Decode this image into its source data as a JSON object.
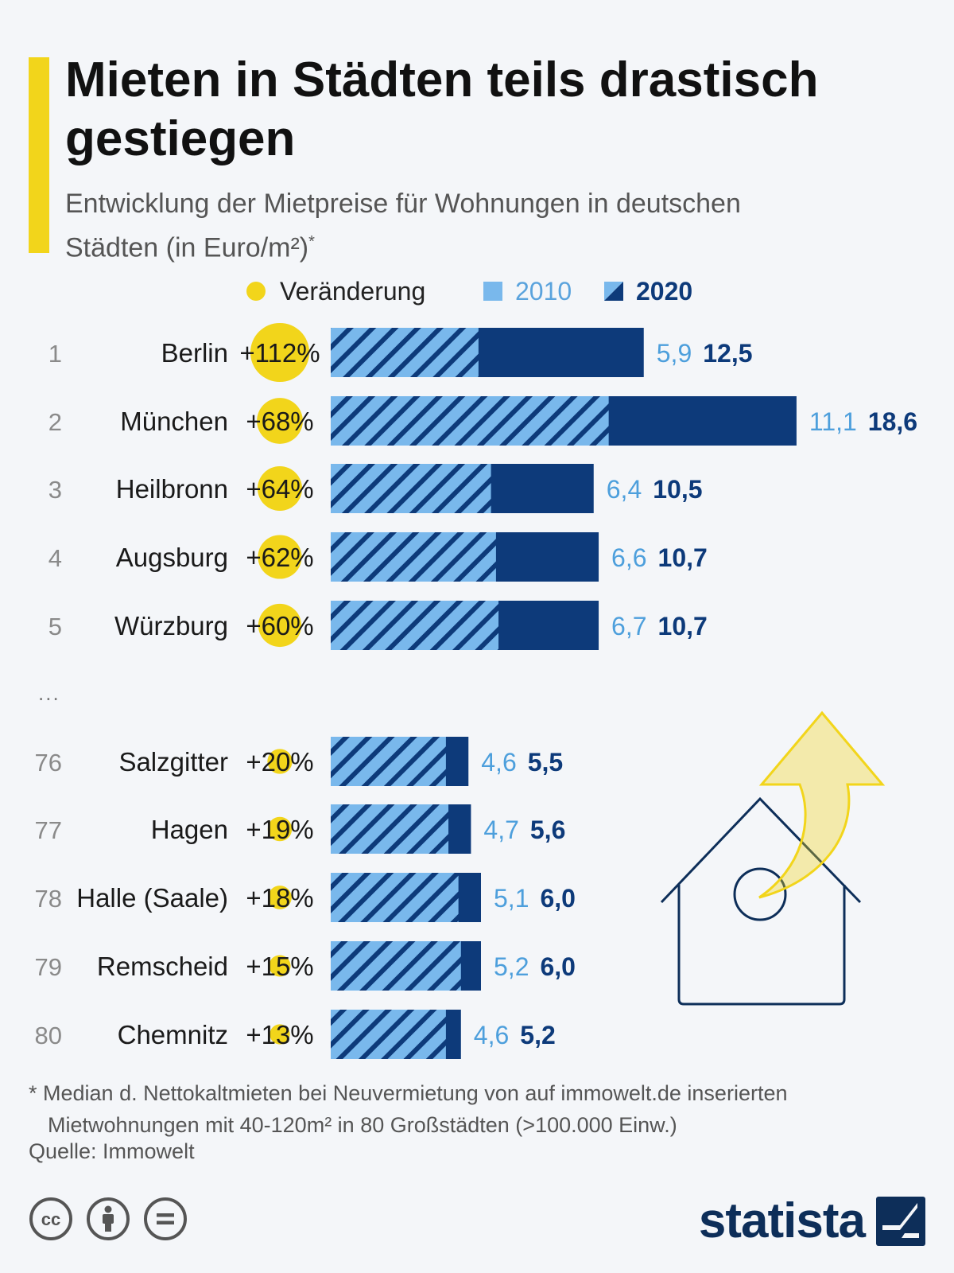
{
  "header": {
    "title": "Mieten in Städten teils drastisch gestiegen",
    "subtitle": "Entwicklung der Mietpreise für Wohnungen in deutschen Städten (in Euro/m²)",
    "subtitle_mark": "*"
  },
  "legend": {
    "change": "Veränderung",
    "y2010": "2010",
    "y2020": "2020"
  },
  "colors": {
    "accent": "#f2d51b",
    "light": "#79b8ec",
    "dark": "#0d3a7a",
    "value2010": "#4d9fdc",
    "value2020": "#0d3a7a"
  },
  "chart_data": {
    "type": "bar",
    "orientation": "horizontal",
    "title": "Mieten in Städten teils drastisch gestiegen",
    "series": [
      {
        "name": "2010",
        "values": [
          5.9,
          11.1,
          6.4,
          6.6,
          6.7,
          4.6,
          4.7,
          5.1,
          5.2,
          4.6
        ]
      },
      {
        "name": "2020",
        "values": [
          12.5,
          18.6,
          10.5,
          10.7,
          10.7,
          5.5,
          5.6,
          6.0,
          6.0,
          5.2
        ]
      }
    ],
    "rows": [
      {
        "rank": "1",
        "city": "Berlin",
        "change": "+112%",
        "change_value": 112,
        "v2010": 5.9,
        "v2020": 12.5,
        "label2010": "5,9",
        "label2020": "12,5"
      },
      {
        "rank": "2",
        "city": "München",
        "change": "+68%",
        "change_value": 68,
        "v2010": 11.1,
        "v2020": 18.6,
        "label2010": "11,1",
        "label2020": "18,6"
      },
      {
        "rank": "3",
        "city": "Heilbronn",
        "change": "+64%",
        "change_value": 64,
        "v2010": 6.4,
        "v2020": 10.5,
        "label2010": "6,4",
        "label2020": "10,5"
      },
      {
        "rank": "4",
        "city": "Augsburg",
        "change": "+62%",
        "change_value": 62,
        "v2010": 6.6,
        "v2020": 10.7,
        "label2010": "6,6",
        "label2020": "10,7"
      },
      {
        "rank": "5",
        "city": "Würzburg",
        "change": "+60%",
        "change_value": 60,
        "v2010": 6.7,
        "v2020": 10.7,
        "label2010": "6,7",
        "label2020": "10,7"
      },
      {
        "rank": "76",
        "city": "Salzgitter",
        "change": "+20%",
        "change_value": 20,
        "v2010": 4.6,
        "v2020": 5.5,
        "label2010": "4,6",
        "label2020": "5,5"
      },
      {
        "rank": "77",
        "city": "Hagen",
        "change": "+19%",
        "change_value": 19,
        "v2010": 4.7,
        "v2020": 5.6,
        "label2010": "4,7",
        "label2020": "5,6"
      },
      {
        "rank": "78",
        "city": "Halle (Saale)",
        "change": "+18%",
        "change_value": 18,
        "v2010": 5.1,
        "v2020": 6.0,
        "label2010": "5,1",
        "label2020": "6,0"
      },
      {
        "rank": "79",
        "city": "Remscheid",
        "change": "+15%",
        "change_value": 15,
        "v2010": 5.2,
        "v2020": 6.0,
        "label2010": "5,2",
        "label2020": "6,0"
      },
      {
        "rank": "80",
        "city": "Chemnitz",
        "change": "+13%",
        "change_value": 13,
        "v2010": 4.6,
        "v2020": 5.2,
        "label2010": "4,6",
        "label2020": "5,2"
      }
    ],
    "grid": false,
    "legend_position": "top"
  },
  "gap_marker": "...",
  "footnote": {
    "line1": "* Median d. Nettokaltmieten bei Neuvermietung von auf immowelt.de inserierten",
    "line2": "Mietwohnungen mit 40-120m² in 80 Großstädten (>100.000 Einw.)"
  },
  "source": "Quelle: Immowelt",
  "brand": "statista",
  "icons": [
    "cc-icon",
    "by-icon",
    "nd-icon",
    "statista-logo-icon",
    "house-rising-arrow-icon"
  ]
}
